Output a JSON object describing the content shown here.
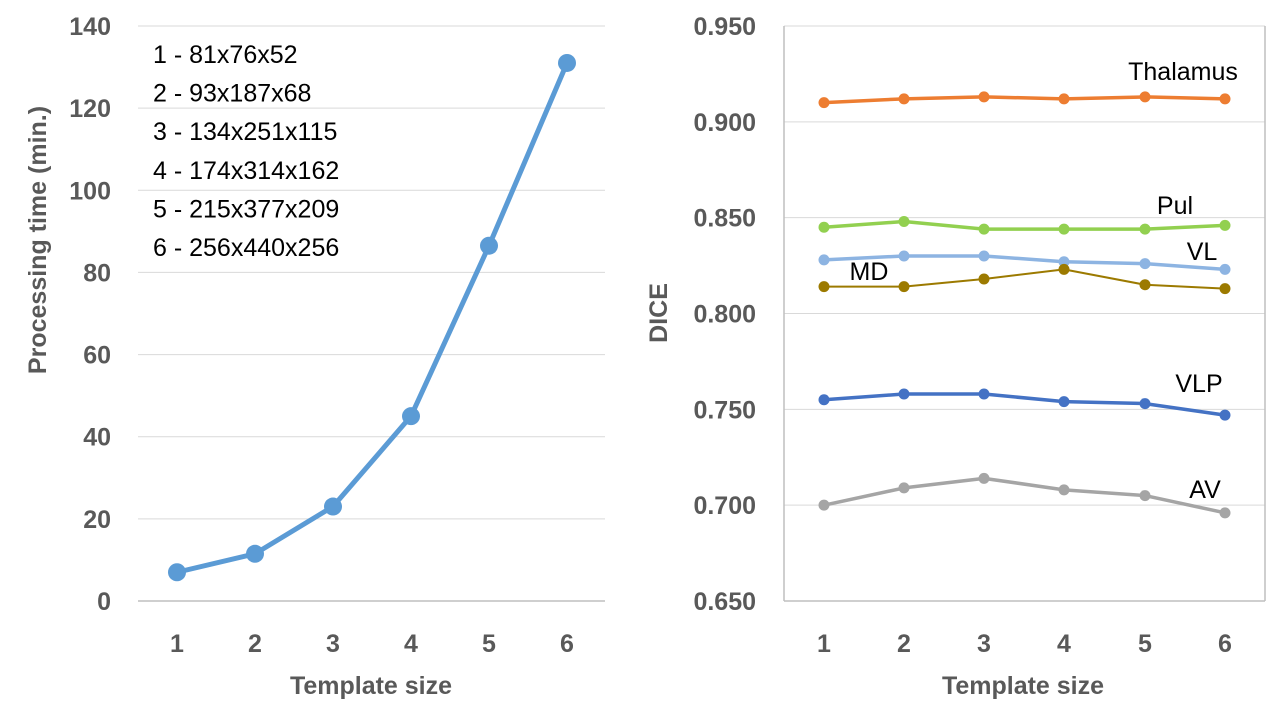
{
  "chart_data": [
    {
      "type": "line",
      "xlabel": "Template size",
      "ylabel": "Processing time (min.)",
      "categories": [
        "1",
        "2",
        "3",
        "4",
        "5",
        "6"
      ],
      "ylim": [
        0,
        140
      ],
      "yticks": [
        0,
        20,
        40,
        60,
        80,
        100,
        120,
        140
      ],
      "ytick_labels": [
        "0",
        "20",
        "40",
        "60",
        "80",
        "100",
        "120",
        "140"
      ],
      "grid": true,
      "series": [
        {
          "name": "Processing time",
          "color": "#5B9BD5",
          "values": [
            7,
            11.5,
            23,
            45,
            86.5,
            131
          ]
        }
      ],
      "annotations": [
        "1 - 81x76x52",
        "2 - 93x187x68",
        "3 - 134x251x115",
        "4 - 174x314x162",
        "5 - 215x377x209",
        "6 - 256x440x256"
      ]
    },
    {
      "type": "line",
      "xlabel": "Template size",
      "ylabel": "DICE",
      "categories": [
        "1",
        "2",
        "3",
        "4",
        "5",
        "6"
      ],
      "ylim": [
        0.65,
        0.95
      ],
      "yticks": [
        0.65,
        0.7,
        0.75,
        0.8,
        0.85,
        0.9,
        0.95
      ],
      "ytick_labels": [
        "0.650",
        "0.700",
        "0.750",
        "0.800",
        "0.850",
        "0.900",
        "0.950"
      ],
      "grid": true,
      "series": [
        {
          "name": "Thalamus",
          "color": "#ED7D31",
          "values": [
            0.91,
            0.912,
            0.913,
            0.912,
            0.913,
            0.912
          ]
        },
        {
          "name": "Pul",
          "color": "#92D050",
          "values": [
            0.845,
            0.848,
            0.844,
            0.844,
            0.844,
            0.846
          ]
        },
        {
          "name": "VL",
          "color": "#8DB4E2",
          "values": [
            0.828,
            0.83,
            0.83,
            0.827,
            0.826,
            0.823
          ]
        },
        {
          "name": "MD",
          "color": "#9C7A00",
          "values": [
            0.814,
            0.814,
            0.818,
            0.823,
            0.815,
            0.813
          ]
        },
        {
          "name": "VLP",
          "color": "#4472C4",
          "values": [
            0.755,
            0.758,
            0.758,
            0.754,
            0.753,
            0.747
          ]
        },
        {
          "name": "AV",
          "color": "#A5A5A5",
          "values": [
            0.7,
            0.709,
            0.714,
            0.708,
            0.705,
            0.696
          ]
        }
      ]
    }
  ]
}
